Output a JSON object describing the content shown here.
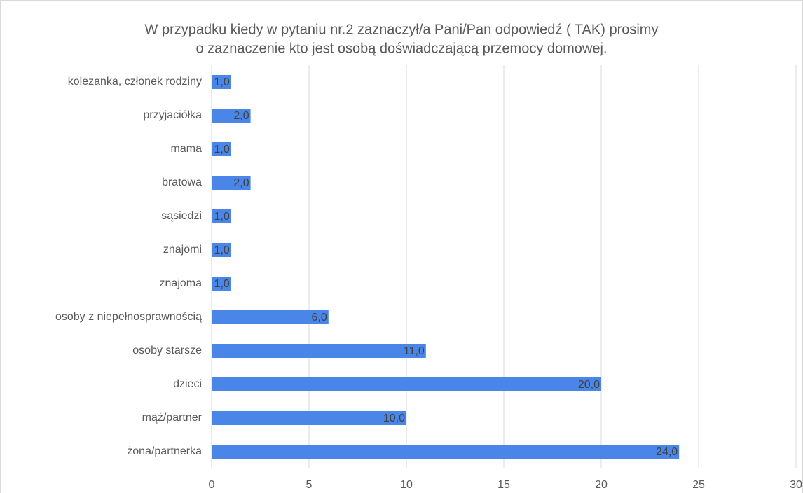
{
  "chart_data": {
    "type": "hbar",
    "title": [
      "W przypadku kiedy w pytaniu nr.2 zaznaczył/a Pani/Pan odpowiedź ( TAK) prosimy",
      "o zaznaczenie kto jest osobą doświadczającą przemocy domowej."
    ],
    "categories": [
      "kolezanka, członek rodziny",
      "przyjaciółka",
      "mama",
      "bratowa",
      "sąsiedzi",
      "znajomi",
      "znajoma",
      "osoby z niepełnosprawnością",
      "osoby starsze",
      "dzieci",
      "mąż/partner",
      "żona/partnerka"
    ],
    "values": [
      1,
      2,
      1,
      2,
      1,
      1,
      1,
      6,
      11,
      20,
      10,
      24
    ],
    "value_labels": [
      "1,0",
      "2,0",
      "1,0",
      "2,0",
      "1,0",
      "1,0",
      "1,0",
      "6,0",
      "11,0",
      "20,0",
      "10,0",
      "24,0"
    ],
    "color": "#4a86e8",
    "xlim": [
      0,
      30
    ],
    "xticks": [
      0,
      5,
      10,
      15,
      20,
      25,
      30
    ],
    "grid": true
  }
}
